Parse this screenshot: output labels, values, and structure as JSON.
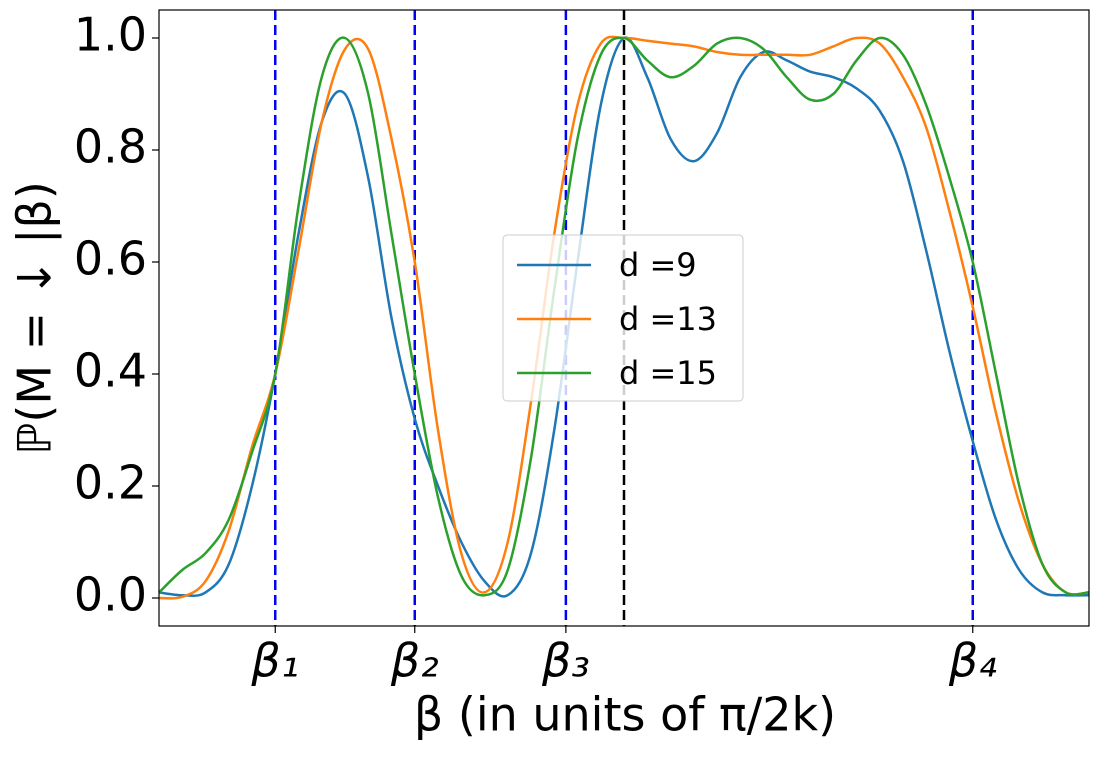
{
  "chart_data": {
    "type": "line",
    "xlabel": "β (in units of π/2k)",
    "ylabel": "ℙ(M = ↓ |β)",
    "x": [
      0,
      0.25,
      0.5,
      0.75,
      1,
      1.25,
      1.5,
      1.75,
      2,
      2.25,
      2.5,
      2.75,
      3,
      3.25,
      3.5,
      3.75,
      4,
      4.25,
      4.5,
      4.75,
      5,
      5.25,
      5.5,
      5.75,
      6,
      6.25,
      6.5,
      6.75,
      7,
      7.25,
      7.5,
      7.75,
      8,
      8.25,
      8.5,
      8.75,
      9,
      9.25,
      9.5,
      9.75,
      10
    ],
    "series": [
      {
        "name": "d =9",
        "color": "#1f77b4",
        "values": [
          0.01,
          0.005,
          0.01,
          0.06,
          0.2,
          0.4,
          0.65,
          0.85,
          0.9,
          0.75,
          0.5,
          0.32,
          0.2,
          0.1,
          0.03,
          0.005,
          0.08,
          0.3,
          0.6,
          0.88,
          1.0,
          0.93,
          0.82,
          0.78,
          0.83,
          0.93,
          0.975,
          0.96,
          0.94,
          0.93,
          0.91,
          0.87,
          0.78,
          0.62,
          0.44,
          0.28,
          0.14,
          0.05,
          0.01,
          0.005,
          0.005
        ]
      },
      {
        "name": "d =13",
        "color": "#ff7f0e",
        "values": [
          0.0,
          0.002,
          0.03,
          0.12,
          0.27,
          0.4,
          0.62,
          0.85,
          0.98,
          0.98,
          0.82,
          0.6,
          0.3,
          0.08,
          0.01,
          0.1,
          0.35,
          0.65,
          0.88,
          0.99,
          1.0,
          0.995,
          0.99,
          0.985,
          0.975,
          0.97,
          0.97,
          0.97,
          0.97,
          0.985,
          1.0,
          0.99,
          0.93,
          0.84,
          0.69,
          0.52,
          0.33,
          0.17,
          0.06,
          0.01,
          0.01
        ]
      },
      {
        "name": "d =15",
        "color": "#2ca02c",
        "values": [
          0.01,
          0.05,
          0.08,
          0.14,
          0.26,
          0.4,
          0.7,
          0.93,
          1.0,
          0.9,
          0.65,
          0.4,
          0.18,
          0.04,
          0.005,
          0.05,
          0.25,
          0.55,
          0.82,
          0.97,
          1.0,
          0.96,
          0.93,
          0.95,
          0.99,
          1.0,
          0.98,
          0.93,
          0.89,
          0.9,
          0.96,
          1.0,
          0.97,
          0.88,
          0.75,
          0.6,
          0.4,
          0.2,
          0.06,
          0.01,
          0.01
        ]
      }
    ],
    "xlim": [
      0,
      10
    ],
    "ylim": [
      -0.05,
      1.05
    ],
    "xticks": [
      {
        "value": 1.25,
        "label": "β₁"
      },
      {
        "value": 2.75,
        "label": "β₂"
      },
      {
        "value": 4.375,
        "label": "β₃"
      },
      {
        "value": 8.75,
        "label": "β₄"
      }
    ],
    "yticks": [
      {
        "value": 0,
        "label": "0.0"
      },
      {
        "value": 0.2,
        "label": "0.2"
      },
      {
        "value": 0.4,
        "label": "0.4"
      },
      {
        "value": 0.6,
        "label": "0.6"
      },
      {
        "value": 0.8,
        "label": "0.8"
      },
      {
        "value": 1,
        "label": "1.0"
      }
    ],
    "xtick_lines": {
      "color": "#0000ff",
      "style": "dashed"
    },
    "reference_line": {
      "x": 5,
      "color": "#000000",
      "style": "dashed"
    },
    "legend": "center"
  }
}
